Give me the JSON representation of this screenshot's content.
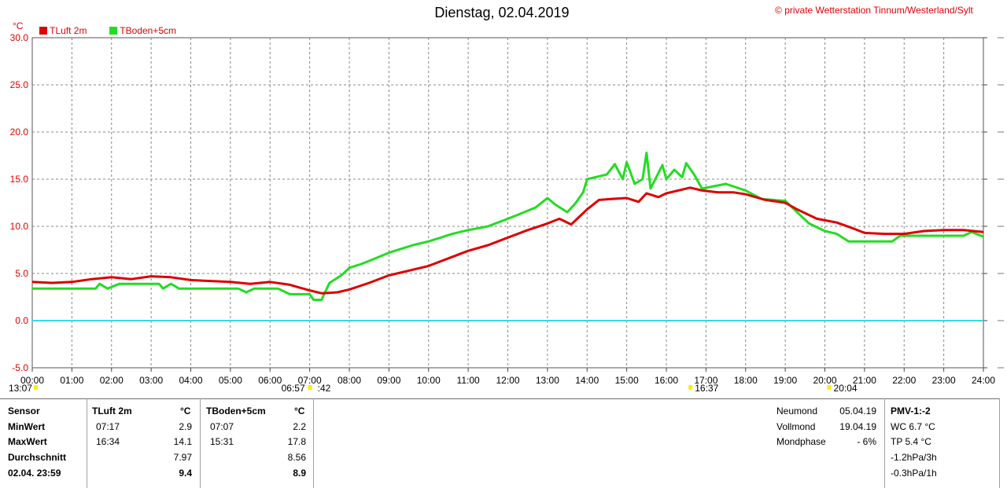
{
  "header": {
    "title": "Dienstag, 02.04.2019",
    "copyright_symbol": "©",
    "station": "private Wetterstation Tinnum/Westerland/Sylt",
    "unit": "°C"
  },
  "colors": {
    "tluft": "#dd0000",
    "tboden": "#22dd22",
    "zero_line": "#33dddd",
    "grid": "#888888",
    "marker": "#ffee00"
  },
  "chart_data": {
    "type": "line",
    "xlabel": "",
    "ylabel": "°C",
    "xlim": [
      0,
      24
    ],
    "ylim": [
      -5,
      30
    ],
    "x_ticks": [
      "00:00",
      "01:00",
      "02:00",
      "03:00",
      "04:00",
      "05:00",
      "06:00",
      "07:00",
      "08:00",
      "09:00",
      "10:00",
      "11:00",
      "12:00",
      "13:00",
      "14:00",
      "15:00",
      "16:00",
      "17:00",
      "18:00",
      "19:00",
      "20:00",
      "21:00",
      "22:00",
      "23:00",
      "24:00"
    ],
    "y_ticks": [
      "-5.0",
      "0.0",
      "5.0",
      "10.0",
      "15.0",
      "20.0",
      "25.0",
      "30.0"
    ],
    "grid": true,
    "legend": "top-left",
    "zero_line": 0,
    "series": [
      {
        "name": "TLuft 2m",
        "color": "#dd0000",
        "points": [
          [
            0,
            4.1
          ],
          [
            0.5,
            4.0
          ],
          [
            1,
            4.1
          ],
          [
            1.5,
            4.4
          ],
          [
            2,
            4.6
          ],
          [
            2.5,
            4.4
          ],
          [
            3,
            4.7
          ],
          [
            3.5,
            4.6
          ],
          [
            4,
            4.3
          ],
          [
            4.5,
            4.2
          ],
          [
            5,
            4.1
          ],
          [
            5.5,
            3.9
          ],
          [
            6,
            4.1
          ],
          [
            6.5,
            3.8
          ],
          [
            7,
            3.2
          ],
          [
            7.3,
            2.9
          ],
          [
            7.7,
            3.0
          ],
          [
            8,
            3.3
          ],
          [
            8.5,
            4.0
          ],
          [
            9,
            4.8
          ],
          [
            9.5,
            5.3
          ],
          [
            10,
            5.8
          ],
          [
            10.5,
            6.6
          ],
          [
            11,
            7.4
          ],
          [
            11.5,
            8.0
          ],
          [
            12,
            8.8
          ],
          [
            12.5,
            9.6
          ],
          [
            13,
            10.3
          ],
          [
            13.3,
            10.8
          ],
          [
            13.6,
            10.2
          ],
          [
            13.8,
            11.0
          ],
          [
            14,
            11.8
          ],
          [
            14.3,
            12.8
          ],
          [
            14.6,
            12.9
          ],
          [
            15,
            13.0
          ],
          [
            15.3,
            12.6
          ],
          [
            15.5,
            13.5
          ],
          [
            15.8,
            13.1
          ],
          [
            16,
            13.5
          ],
          [
            16.3,
            13.8
          ],
          [
            16.6,
            14.1
          ],
          [
            16.9,
            13.8
          ],
          [
            17.3,
            13.6
          ],
          [
            17.7,
            13.6
          ],
          [
            18,
            13.4
          ],
          [
            18.5,
            12.8
          ],
          [
            19,
            12.5
          ],
          [
            19.3,
            11.8
          ],
          [
            19.8,
            10.8
          ],
          [
            20.3,
            10.4
          ],
          [
            20.7,
            9.8
          ],
          [
            21,
            9.3
          ],
          [
            21.5,
            9.2
          ],
          [
            22,
            9.2
          ],
          [
            22.5,
            9.5
          ],
          [
            23,
            9.6
          ],
          [
            23.5,
            9.6
          ],
          [
            24,
            9.4
          ]
        ]
      },
      {
        "name": "TBoden+5cm",
        "color": "#22dd22",
        "points": [
          [
            0,
            3.4
          ],
          [
            1.6,
            3.4
          ],
          [
            1.7,
            3.9
          ],
          [
            1.9,
            3.4
          ],
          [
            2.2,
            3.9
          ],
          [
            3.2,
            3.9
          ],
          [
            3.3,
            3.4
          ],
          [
            3.5,
            3.9
          ],
          [
            3.7,
            3.4
          ],
          [
            5.2,
            3.4
          ],
          [
            5.4,
            3.0
          ],
          [
            5.6,
            3.4
          ],
          [
            6.2,
            3.4
          ],
          [
            6.5,
            2.8
          ],
          [
            7.0,
            2.8
          ],
          [
            7.1,
            2.2
          ],
          [
            7.3,
            2.2
          ],
          [
            7.5,
            4.0
          ],
          [
            7.8,
            4.8
          ],
          [
            8.0,
            5.6
          ],
          [
            8.3,
            6.0
          ],
          [
            8.6,
            6.5
          ],
          [
            9.0,
            7.2
          ],
          [
            9.3,
            7.6
          ],
          [
            9.6,
            8.0
          ],
          [
            10.0,
            8.4
          ],
          [
            10.3,
            8.8
          ],
          [
            10.6,
            9.2
          ],
          [
            11.0,
            9.6
          ],
          [
            11.5,
            10.0
          ],
          [
            12.0,
            10.8
          ],
          [
            12.3,
            11.3
          ],
          [
            12.7,
            12.0
          ],
          [
            13.0,
            13.0
          ],
          [
            13.2,
            12.3
          ],
          [
            13.5,
            11.5
          ],
          [
            13.7,
            12.4
          ],
          [
            13.9,
            13.6
          ],
          [
            14.0,
            15.0
          ],
          [
            14.5,
            15.5
          ],
          [
            14.7,
            16.6
          ],
          [
            14.9,
            15.0
          ],
          [
            15.0,
            16.8
          ],
          [
            15.2,
            14.5
          ],
          [
            15.4,
            15.0
          ],
          [
            15.5,
            17.8
          ],
          [
            15.6,
            14.0
          ],
          [
            15.9,
            16.5
          ],
          [
            16.0,
            15.0
          ],
          [
            16.2,
            16.0
          ],
          [
            16.4,
            15.2
          ],
          [
            16.5,
            16.7
          ],
          [
            16.7,
            15.5
          ],
          [
            16.9,
            14.0
          ],
          [
            17.5,
            14.5
          ],
          [
            18.0,
            13.8
          ],
          [
            18.4,
            12.9
          ],
          [
            19.0,
            12.7
          ],
          [
            19.3,
            11.5
          ],
          [
            19.6,
            10.3
          ],
          [
            20.0,
            9.5
          ],
          [
            20.3,
            9.2
          ],
          [
            20.6,
            8.4
          ],
          [
            21.0,
            8.4
          ],
          [
            21.7,
            8.4
          ],
          [
            21.9,
            9.0
          ],
          [
            23.5,
            9.0
          ],
          [
            23.7,
            9.4
          ],
          [
            24,
            8.9
          ]
        ]
      }
    ],
    "markers": [
      {
        "x_hours": 0,
        "label": "13:07"
      },
      {
        "x_hours": 7,
        "label": "06:57"
      },
      {
        "x_hours": 7,
        "label": ":42"
      },
      {
        "x_hours": 16.6,
        "label": "16:37"
      },
      {
        "x_hours": 20.1,
        "label": "20:04"
      }
    ]
  },
  "legend": {
    "tluft": "TLuft 2m",
    "tboden": "TBoden+5cm"
  },
  "table": {
    "headers": {
      "sensor": "Sensor",
      "tluft": "TLuft 2m",
      "tluft_unit": "°C",
      "tboden": "TBoden+5cm",
      "tboden_unit": "°C"
    },
    "rows": [
      {
        "label": "MinWert",
        "t1_time": "07:17",
        "t1_val": "2.9",
        "t2_time": "07:07",
        "t2_val": "2.2"
      },
      {
        "label": "MaxWert",
        "t1_time": "16:34",
        "t1_val": "14.1",
        "t2_time": "15:31",
        "t2_val": "17.8"
      },
      {
        "label": "Durchschnitt",
        "t1_time": "",
        "t1_val": "7.97",
        "t2_time": "",
        "t2_val": "8.56"
      },
      {
        "label": "02.04. 23:59",
        "t1_time": "",
        "t1_val": "9.4",
        "t2_time": "",
        "t2_val": "8.9"
      }
    ]
  },
  "moon": {
    "rows": [
      {
        "label": "Neumond",
        "value": "05.04.19"
      },
      {
        "label": "Vollmond",
        "value": "19.04.19"
      },
      {
        "label": "Mondphase",
        "value": "- 6%"
      }
    ]
  },
  "pmv": {
    "title": "PMV-1:-2",
    "lines": [
      "WC 6.7 °C",
      "TP 5.4 °C",
      "-1.2hPa/3h",
      "-0.3hPa/1h"
    ]
  }
}
